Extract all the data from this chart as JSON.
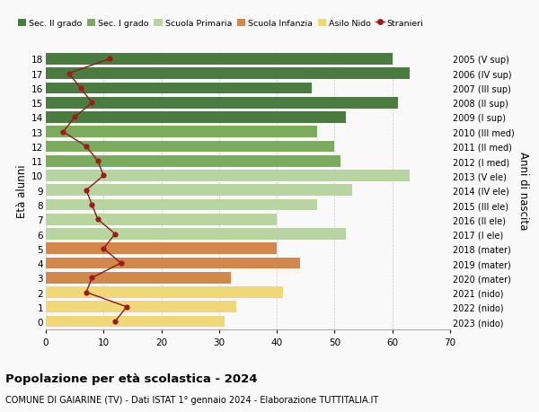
{
  "ages": [
    18,
    17,
    16,
    15,
    14,
    13,
    12,
    11,
    10,
    9,
    8,
    7,
    6,
    5,
    4,
    3,
    2,
    1,
    0
  ],
  "right_labels": [
    "2005 (V sup)",
    "2006 (IV sup)",
    "2007 (III sup)",
    "2008 (II sup)",
    "2009 (I sup)",
    "2010 (III med)",
    "2011 (II med)",
    "2012 (I med)",
    "2013 (V ele)",
    "2014 (IV ele)",
    "2015 (III ele)",
    "2016 (II ele)",
    "2017 (I ele)",
    "2018 (mater)",
    "2019 (mater)",
    "2020 (mater)",
    "2021 (nido)",
    "2022 (nido)",
    "2023 (nido)"
  ],
  "bar_values": [
    60,
    63,
    46,
    61,
    52,
    47,
    50,
    51,
    63,
    53,
    47,
    40,
    52,
    40,
    44,
    32,
    41,
    33,
    31
  ],
  "stranieri_values": [
    11,
    4,
    6,
    8,
    5,
    3,
    7,
    9,
    10,
    7,
    8,
    9,
    12,
    10,
    13,
    8,
    7,
    14,
    12
  ],
  "bar_colors": [
    "#4a7c3f",
    "#4a7c3f",
    "#4a7c3f",
    "#4a7c3f",
    "#4a7c3f",
    "#7aab5f",
    "#7aab5f",
    "#7aab5f",
    "#b8d4a0",
    "#b8d4a0",
    "#b8d4a0",
    "#b8d4a0",
    "#b8d4a0",
    "#d4874a",
    "#d4874a",
    "#d4874a",
    "#f0d878",
    "#f0d878",
    "#f0d878"
  ],
  "legend_labels": [
    "Sec. II grado",
    "Sec. I grado",
    "Scuola Primaria",
    "Scuola Infanzia",
    "Asilo Nido",
    "Stranieri"
  ],
  "legend_colors": [
    "#4a7c3f",
    "#7aab5f",
    "#b8d4a0",
    "#d4874a",
    "#f0d878",
    "#9b1c1c"
  ],
  "stranieri_color": "#9b1c1c",
  "stranieri_line_color": "#8b1a1a",
  "title": "Popolazione per età scolastica - 2024",
  "subtitle": "COMUNE DI GAIARINE (TV) - Dati ISTAT 1° gennaio 2024 - Elaborazione TUTTITALIA.IT",
  "ylabel": "Età alunni",
  "right_ylabel": "Anni di nascita",
  "xlim": [
    0,
    70
  ],
  "xticks": [
    0,
    10,
    20,
    30,
    40,
    50,
    60,
    70
  ],
  "background_color": "#f9f9f9",
  "bar_height": 0.78
}
